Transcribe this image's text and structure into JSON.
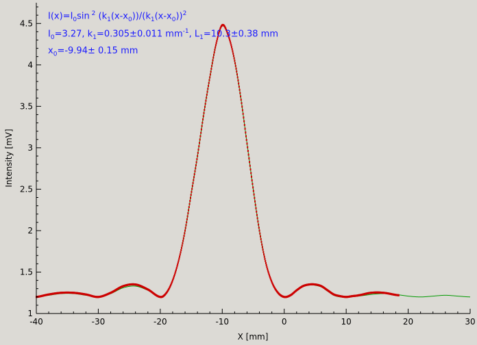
{
  "chart_data": {
    "type": "scatter",
    "xlabel": "X [mm]",
    "ylabel": "Intensity [mV]",
    "xlim": [
      -40,
      30
    ],
    "ylim": [
      1,
      4.75
    ],
    "x_ticks": [
      -40,
      -30,
      -20,
      -10,
      0,
      10,
      20,
      30
    ],
    "y_ticks": [
      1,
      1.5,
      2,
      2.5,
      3,
      3.5,
      4,
      4.5
    ],
    "grid": false,
    "colors": {
      "data": "#cc0000",
      "fit": "#009900",
      "annotation": "#1a1aff",
      "background": "#dcdad5"
    },
    "annotations": {
      "line1": {
        "a": "I(x)=I",
        "a_sub": "0",
        "b": "sin",
        "b_sup": " 2",
        "c": " (k",
        "c_sub": "1",
        "d": "(x-x",
        "d_sub": "0",
        "e": "))/(k",
        "e_sub": "1",
        "f": "(x-x",
        "f_sub": "0",
        "g": "))",
        "g_sup": "2"
      },
      "line2": {
        "a": "I",
        "a_sub": "0",
        "b": "=3.27,  k",
        "b_sub": "1",
        "c": "=0.305±0.011 mm",
        "c_sup": "-1",
        "d": ",   L",
        "d_sub": "1",
        "e": "=10.3±0.38 mm"
      },
      "line3": {
        "a": "x",
        "a_sub": "0",
        "b": "=-9.94±   0.15 mm"
      }
    },
    "series": [
      {
        "role": "measured",
        "x": [
          -40,
          -38,
          -36,
          -34,
          -32,
          -30,
          -28,
          -26,
          -24,
          -22,
          -20,
          -19,
          -18,
          -17,
          -16,
          -15,
          -14,
          -13,
          -12,
          -11,
          -10,
          -9,
          -8,
          -7,
          -6,
          -5,
          -4,
          -3,
          -2,
          -1,
          0,
          1,
          2,
          3,
          4,
          5,
          6,
          7,
          8,
          9,
          10,
          11,
          12,
          14,
          16,
          18.5
        ],
        "y": [
          1.2,
          1.23,
          1.25,
          1.25,
          1.23,
          1.2,
          1.25,
          1.33,
          1.35,
          1.29,
          1.2,
          1.25,
          1.4,
          1.65,
          2.0,
          2.45,
          2.9,
          3.4,
          3.85,
          4.25,
          4.48,
          4.35,
          4.05,
          3.6,
          3.05,
          2.5,
          2.0,
          1.62,
          1.38,
          1.25,
          1.2,
          1.22,
          1.28,
          1.33,
          1.35,
          1.35,
          1.33,
          1.28,
          1.23,
          1.21,
          1.2,
          1.21,
          1.22,
          1.25,
          1.25,
          1.22
        ]
      },
      {
        "role": "fit",
        "x": [
          -40,
          -38,
          -36,
          -34,
          -32,
          -30,
          -28,
          -26,
          -24,
          -22,
          -20,
          -19,
          -18,
          -17,
          -16,
          -15,
          -14,
          -13,
          -12,
          -11,
          -10,
          -9,
          -8,
          -7,
          -6,
          -5,
          -4,
          -3,
          -2,
          -1,
          0,
          1,
          2,
          3,
          4,
          5,
          6,
          7,
          8,
          9,
          10,
          12,
          14,
          16,
          18,
          20,
          22,
          24,
          26,
          28,
          30
        ],
        "y": [
          1.2,
          1.22,
          1.24,
          1.24,
          1.22,
          1.2,
          1.24,
          1.31,
          1.33,
          1.28,
          1.2,
          1.25,
          1.4,
          1.65,
          2.0,
          2.45,
          2.9,
          3.4,
          3.85,
          4.25,
          4.47,
          4.35,
          4.05,
          3.6,
          3.05,
          2.5,
          2.0,
          1.62,
          1.38,
          1.25,
          1.2,
          1.22,
          1.28,
          1.33,
          1.35,
          1.34,
          1.32,
          1.27,
          1.22,
          1.2,
          1.2,
          1.21,
          1.23,
          1.24,
          1.23,
          1.21,
          1.2,
          1.21,
          1.22,
          1.21,
          1.2
        ]
      }
    ]
  }
}
